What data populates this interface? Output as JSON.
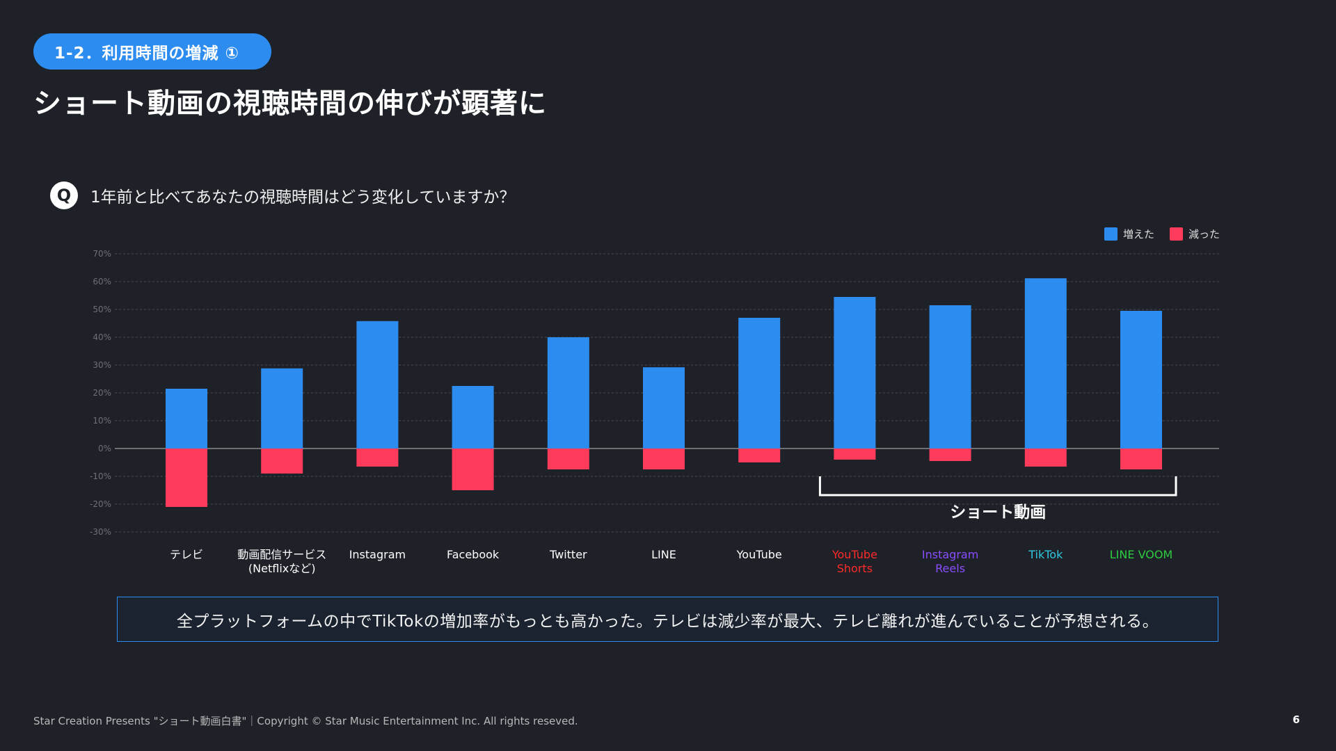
{
  "header": {
    "badge": "1-2．利用時間の増減 ①",
    "title": "ショート動画の視聴時間の伸びが顕著に"
  },
  "question": {
    "icon": "Q",
    "text": "1年前と比べてあなたの視聴時間はどう変化していますか？"
  },
  "legend": {
    "increase": "増えた",
    "decrease": "減った"
  },
  "colors": {
    "increase": "#2d8cf0",
    "decrease": "#ff3b5c",
    "accent": "#2d8cf0"
  },
  "chart_data": {
    "type": "bar",
    "categories": [
      "テレビ",
      "動画配信サービス\n(Netflixなど)",
      "Instagram",
      "Facebook",
      "Twitter",
      "LINE",
      "YouTube",
      "YouTube\nShorts",
      "Instagram\nReels",
      "TikTok",
      "LINE VOOM"
    ],
    "category_colors": [
      "#ffffff",
      "#ffffff",
      "#ffffff",
      "#ffffff",
      "#ffffff",
      "#ffffff",
      "#ffffff",
      "#ff2a2a",
      "#8a4dff",
      "#30c8e0",
      "#2ecc40"
    ],
    "series": [
      {
        "name": "増えた",
        "values": [
          21.5,
          28.8,
          45.8,
          22.5,
          40,
          29.2,
          47,
          54.5,
          51.5,
          61.2,
          49.5
        ]
      },
      {
        "name": "減った",
        "values": [
          -21,
          -9,
          -6.5,
          -15,
          -7.5,
          -7.5,
          -5,
          -4,
          -4.5,
          -6.5,
          -7.5
        ]
      }
    ],
    "ylim": [
      -30,
      70
    ],
    "yticks": [
      "70%",
      "60%",
      "50%",
      "40%",
      "30%",
      "20%",
      "10%",
      "0%",
      "-10%",
      "-20%",
      "-30%"
    ],
    "ytick_values": [
      70,
      60,
      50,
      40,
      30,
      20,
      10,
      0,
      -10,
      -20,
      -30
    ],
    "grid": true,
    "legend_position": "top-right",
    "annotation": {
      "label": "ショート動画",
      "from_index": 7,
      "to_index": 10
    }
  },
  "summary": "全プラットフォームの中でTikTokの増加率がもっとも高かった。テレビは減少率が最大、テレビ離れが進んでいることが予想される。",
  "footer": {
    "copyright": "Star Creation Presents \"ショート動画白書\"｜Copyright © Star Music Entertainment Inc. All rights reseved.",
    "page": "6"
  }
}
